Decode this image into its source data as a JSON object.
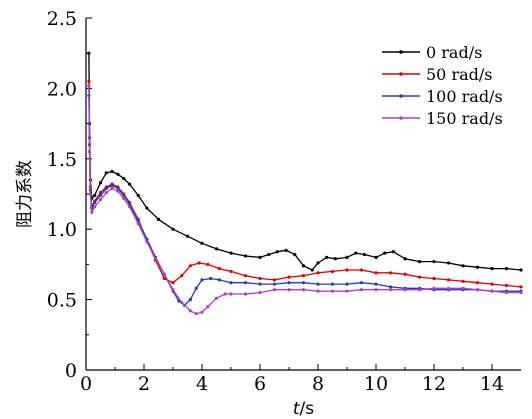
{
  "chart_data": {
    "type": "line",
    "title": "",
    "xlabel_italic": "t",
    "xlabel_unit": "/s",
    "ylabel": "阻力系数",
    "xlim": [
      0,
      15
    ],
    "ylim": [
      0,
      2.5
    ],
    "x_ticks": [
      "0",
      "2",
      "4",
      "6",
      "8",
      "10",
      "12",
      "14"
    ],
    "y_ticks": [
      "0",
      "0.5",
      "1.0",
      "1.5",
      "2.0",
      "2.5"
    ],
    "grid": false,
    "legend_position": "top-right",
    "series": [
      {
        "name": "0 rad/s",
        "color": "#000000",
        "x": [
          0.1,
          0.12,
          0.15,
          0.2,
          0.3,
          0.5,
          0.7,
          0.9,
          1.1,
          1.3,
          1.5,
          1.8,
          2.1,
          2.5,
          3.0,
          3.5,
          4.0,
          4.5,
          5.0,
          5.5,
          6.0,
          6.3,
          6.6,
          6.9,
          7.2,
          7.5,
          7.8,
          8.0,
          8.3,
          8.6,
          9.0,
          9.3,
          9.6,
          10.0,
          10.3,
          10.6,
          11.0,
          11.5,
          12.0,
          12.5,
          13.0,
          13.5,
          14.0,
          14.5,
          15.0
        ],
        "y": [
          2.25,
          1.75,
          1.35,
          1.22,
          1.24,
          1.33,
          1.4,
          1.41,
          1.39,
          1.36,
          1.32,
          1.24,
          1.15,
          1.07,
          1.0,
          0.95,
          0.9,
          0.86,
          0.83,
          0.81,
          0.8,
          0.82,
          0.84,
          0.85,
          0.82,
          0.74,
          0.71,
          0.76,
          0.8,
          0.79,
          0.8,
          0.83,
          0.82,
          0.8,
          0.83,
          0.84,
          0.79,
          0.77,
          0.77,
          0.76,
          0.74,
          0.73,
          0.72,
          0.72,
          0.71
        ]
      },
      {
        "name": "50 rad/s",
        "color": "#e00000",
        "x": [
          0.1,
          0.12,
          0.15,
          0.2,
          0.3,
          0.5,
          0.7,
          0.9,
          1.1,
          1.3,
          1.5,
          1.8,
          2.1,
          2.4,
          2.7,
          3.0,
          3.3,
          3.6,
          3.9,
          4.2,
          4.6,
          5.0,
          5.5,
          6.0,
          6.5,
          7.0,
          7.5,
          8.0,
          8.5,
          9.0,
          9.5,
          10.0,
          10.5,
          11.0,
          11.5,
          12.0,
          12.5,
          13.0,
          13.5,
          14.0,
          14.5,
          15.0
        ],
        "y": [
          2.05,
          1.65,
          1.3,
          1.16,
          1.2,
          1.26,
          1.3,
          1.32,
          1.3,
          1.25,
          1.19,
          1.07,
          0.92,
          0.78,
          0.65,
          0.62,
          0.67,
          0.74,
          0.76,
          0.75,
          0.72,
          0.7,
          0.67,
          0.65,
          0.64,
          0.66,
          0.67,
          0.69,
          0.7,
          0.71,
          0.71,
          0.69,
          0.69,
          0.68,
          0.66,
          0.65,
          0.64,
          0.63,
          0.62,
          0.61,
          0.6,
          0.59
        ]
      },
      {
        "name": "100 rad/s",
        "color": "#1f3fbf",
        "x": [
          0.1,
          0.12,
          0.15,
          0.2,
          0.3,
          0.5,
          0.7,
          0.9,
          1.1,
          1.3,
          1.5,
          1.8,
          2.1,
          2.4,
          2.7,
          3.0,
          3.2,
          3.4,
          3.6,
          3.8,
          4.0,
          4.3,
          4.6,
          5.0,
          5.5,
          6.0,
          6.5,
          7.0,
          7.5,
          8.0,
          8.5,
          9.0,
          9.5,
          10.0,
          10.5,
          11.0,
          11.5,
          12.0,
          12.5,
          13.0,
          13.5,
          14.0,
          14.5,
          15.0
        ],
        "y": [
          1.95,
          1.6,
          1.28,
          1.15,
          1.19,
          1.24,
          1.29,
          1.31,
          1.29,
          1.24,
          1.18,
          1.06,
          0.93,
          0.8,
          0.68,
          0.56,
          0.49,
          0.46,
          0.5,
          0.58,
          0.64,
          0.65,
          0.64,
          0.62,
          0.62,
          0.61,
          0.61,
          0.62,
          0.62,
          0.61,
          0.61,
          0.61,
          0.62,
          0.61,
          0.59,
          0.58,
          0.58,
          0.57,
          0.57,
          0.57,
          0.57,
          0.56,
          0.56,
          0.56
        ]
      },
      {
        "name": "150 rad/s",
        "color": "#b040c0",
        "x": [
          0.1,
          0.12,
          0.15,
          0.2,
          0.3,
          0.5,
          0.7,
          0.9,
          1.1,
          1.3,
          1.5,
          1.8,
          2.1,
          2.4,
          2.7,
          3.0,
          3.3,
          3.6,
          3.8,
          4.0,
          4.2,
          4.5,
          4.8,
          5.0,
          5.5,
          6.0,
          6.5,
          7.0,
          7.5,
          8.0,
          8.5,
          9.0,
          9.5,
          10.0,
          10.5,
          11.0,
          11.5,
          12.0,
          12.5,
          13.0,
          13.5,
          14.0,
          14.5,
          15.0
        ],
        "y": [
          2.02,
          1.55,
          1.25,
          1.12,
          1.16,
          1.21,
          1.26,
          1.29,
          1.27,
          1.22,
          1.16,
          1.04,
          0.91,
          0.79,
          0.68,
          0.57,
          0.48,
          0.42,
          0.4,
          0.41,
          0.45,
          0.51,
          0.54,
          0.54,
          0.54,
          0.55,
          0.57,
          0.57,
          0.57,
          0.56,
          0.56,
          0.56,
          0.57,
          0.57,
          0.57,
          0.57,
          0.57,
          0.58,
          0.58,
          0.58,
          0.57,
          0.56,
          0.55,
          0.55
        ]
      }
    ]
  }
}
